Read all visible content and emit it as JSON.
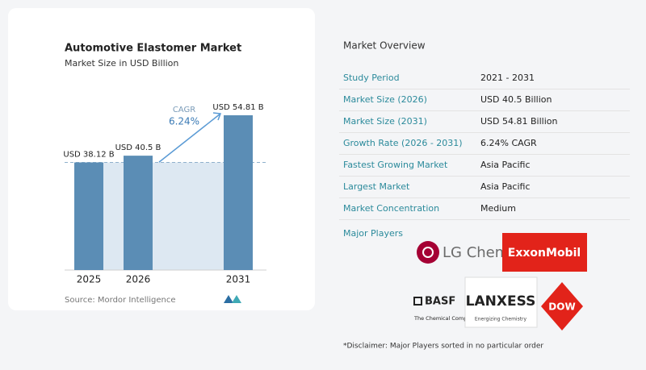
{
  "chart_data": {
    "type": "bar",
    "title": "Automotive Elastomer Market",
    "subtitle": "Market Size in USD Billion",
    "categories": [
      "2025",
      "2026",
      "2031"
    ],
    "values": [
      38.12,
      40.5,
      54.81
    ],
    "value_labels": [
      "USD 38.12 B",
      "USD 40.5 B",
      "USD 54.81 B"
    ],
    "color": "#5b8db5",
    "annotations": [
      "CAGR",
      "6.24%"
    ],
    "source": "Source: Mordor Intelligence"
  },
  "overview": {
    "title": "Market Overview",
    "rows": [
      [
        "Study Period",
        "2021 - 2031"
      ],
      [
        "Market Size (2026)",
        "USD 40.5 Billion"
      ],
      [
        "Market Size (2031)",
        "USD 54.81 Billion"
      ],
      [
        "Growth Rate (2026 - 2031)",
        "6.24% CAGR"
      ],
      [
        "Fastest Growing Market",
        "Asia Pacific"
      ],
      [
        "Largest Market",
        "Asia Pacific"
      ],
      [
        "Market Concentration",
        "Medium"
      ]
    ],
    "players_title": "Major Players",
    "players": [
      "LG Chem",
      "ExxonMobil",
      "BASF",
      "The Chemical Company",
      "LANXESS",
      "Energizing Chemistry",
      "DOW"
    ],
    "disclaimer": "*Disclaimer: Major Players sorted in no particular order"
  }
}
